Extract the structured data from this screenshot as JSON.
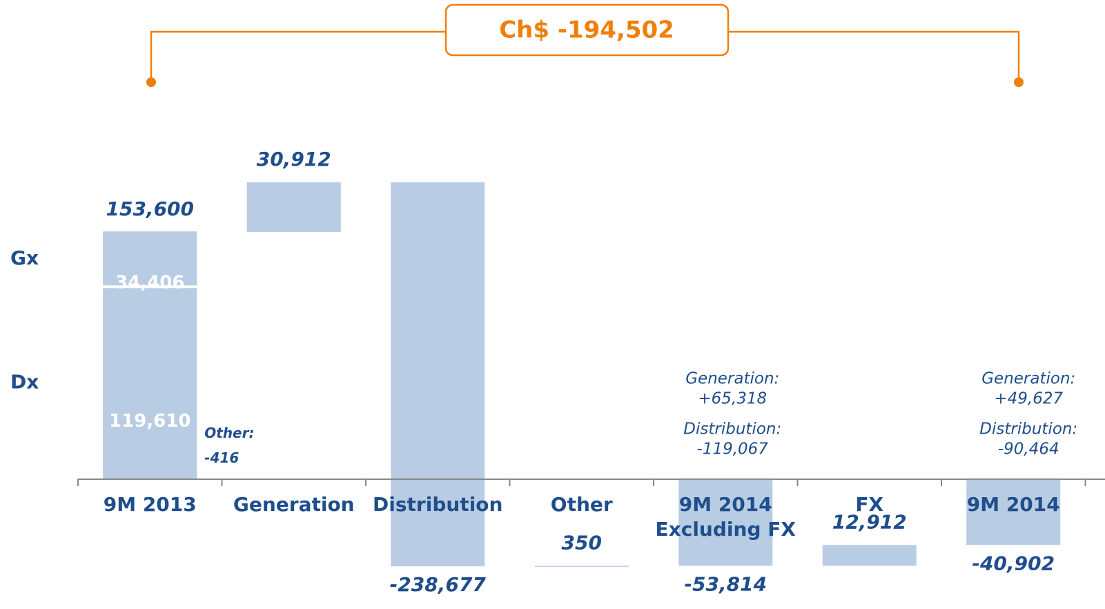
{
  "chart_data": {
    "type": "waterfall",
    "header": "Ch$ -194,502",
    "categories": [
      "9M 2013",
      "Generation",
      "Distribution",
      "Other",
      "9M 2014\nExcluding FX",
      "FX",
      "9M 2014"
    ],
    "values": [
      153600,
      30912,
      -238677,
      350,
      -53814,
      12912,
      -40902
    ],
    "value_labels": [
      "153,600",
      "30,912",
      "-238,677",
      "350",
      "-53,814",
      "12,912",
      "-40,902"
    ],
    "measures": [
      "total",
      "relative",
      "relative",
      "relative",
      "total",
      "relative",
      "total"
    ],
    "color": "#b8cce4",
    "segments": [
      {
        "name": "Dx",
        "value": 119610,
        "label": "119,610"
      },
      {
        "name": "Gx",
        "value": 34406,
        "label": "34,406"
      }
    ],
    "annotations": [
      {
        "category": 0,
        "texts": [
          "Other:\n-416"
        ]
      },
      {
        "category": 4,
        "texts": [
          "Generation:\n+65,318",
          "Distribution:\n-119,067"
        ]
      },
      {
        "category": 6,
        "texts": [
          "Generation:\n+49,627",
          "Distribution:\n-90,464"
        ]
      }
    ]
  }
}
